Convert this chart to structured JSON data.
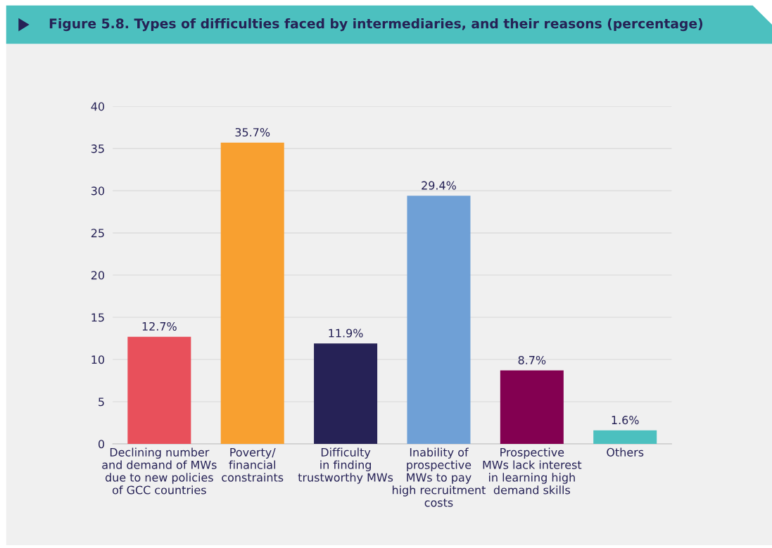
{
  "chart_data": {
    "type": "bar",
    "title": "Figure 5.8. Types of difficulties faced by intermediaries, and their reasons (percentage)",
    "categories": [
      "Declining number\nand demand of MWs\ndue to new policies\nof GCC countries",
      "Poverty/\nfinancial\nconstraints",
      "Difficulty\nin finding\ntrustworthy MWs",
      "Inability of\nprospective\nMWs to pay\nhigh recruitment\ncosts",
      "Prospective\nMWs lack interest\nin learning high\ndemand skills",
      "Others"
    ],
    "values": [
      12.7,
      35.7,
      11.9,
      29.4,
      8.7,
      1.6
    ],
    "colors": [
      "#e8505b",
      "#f8a030",
      "#262256",
      "#6fa0d6",
      "#830051",
      "#4cc0bf"
    ],
    "value_labels": [
      "12.7%",
      "35.7%",
      "11.9%",
      "29.4%",
      "8.7%",
      "1.6%"
    ],
    "ylim": [
      0,
      40
    ],
    "yticks": [
      0,
      5,
      10,
      15,
      20,
      25,
      30,
      35,
      40
    ],
    "grid": "y"
  }
}
